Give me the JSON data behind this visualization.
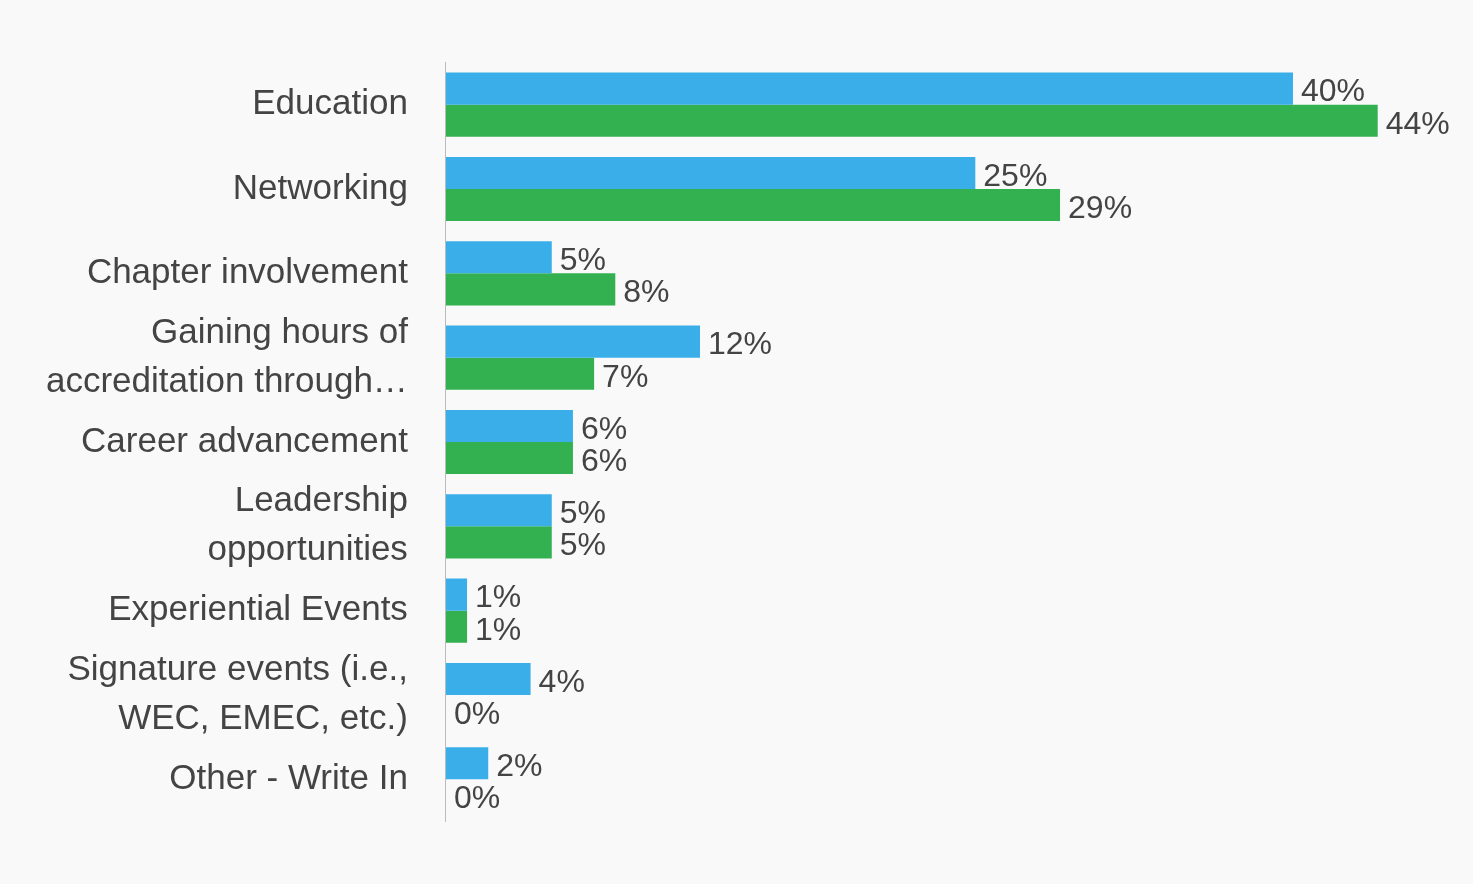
{
  "chart_data": {
    "type": "bar",
    "orientation": "horizontal",
    "categories": [
      "Education",
      "Networking",
      "Chapter involvement",
      "Gaining hours of accreditation through…",
      "Career advancement",
      "Leadership opportunities",
      "Experiential Events",
      "Signature events (i.e., WEC, EMEC, etc.)",
      "Other - Write In"
    ],
    "series": [
      {
        "color": "#3aaee8",
        "values": [
          40,
          25,
          5,
          12,
          6,
          5,
          1,
          4,
          2
        ],
        "value_labels": [
          "40%",
          "25%",
          "5%",
          "12%",
          "6%",
          "5%",
          "1%",
          "4%",
          "2%"
        ]
      },
      {
        "color": "#33b050",
        "values": [
          44,
          29,
          8,
          7,
          6,
          5,
          1,
          0,
          0
        ],
        "value_labels": [
          "44%",
          "29%",
          "8%",
          "7%",
          "6%",
          "5%",
          "1%",
          "0%",
          "0%"
        ]
      }
    ],
    "legend": false
  }
}
